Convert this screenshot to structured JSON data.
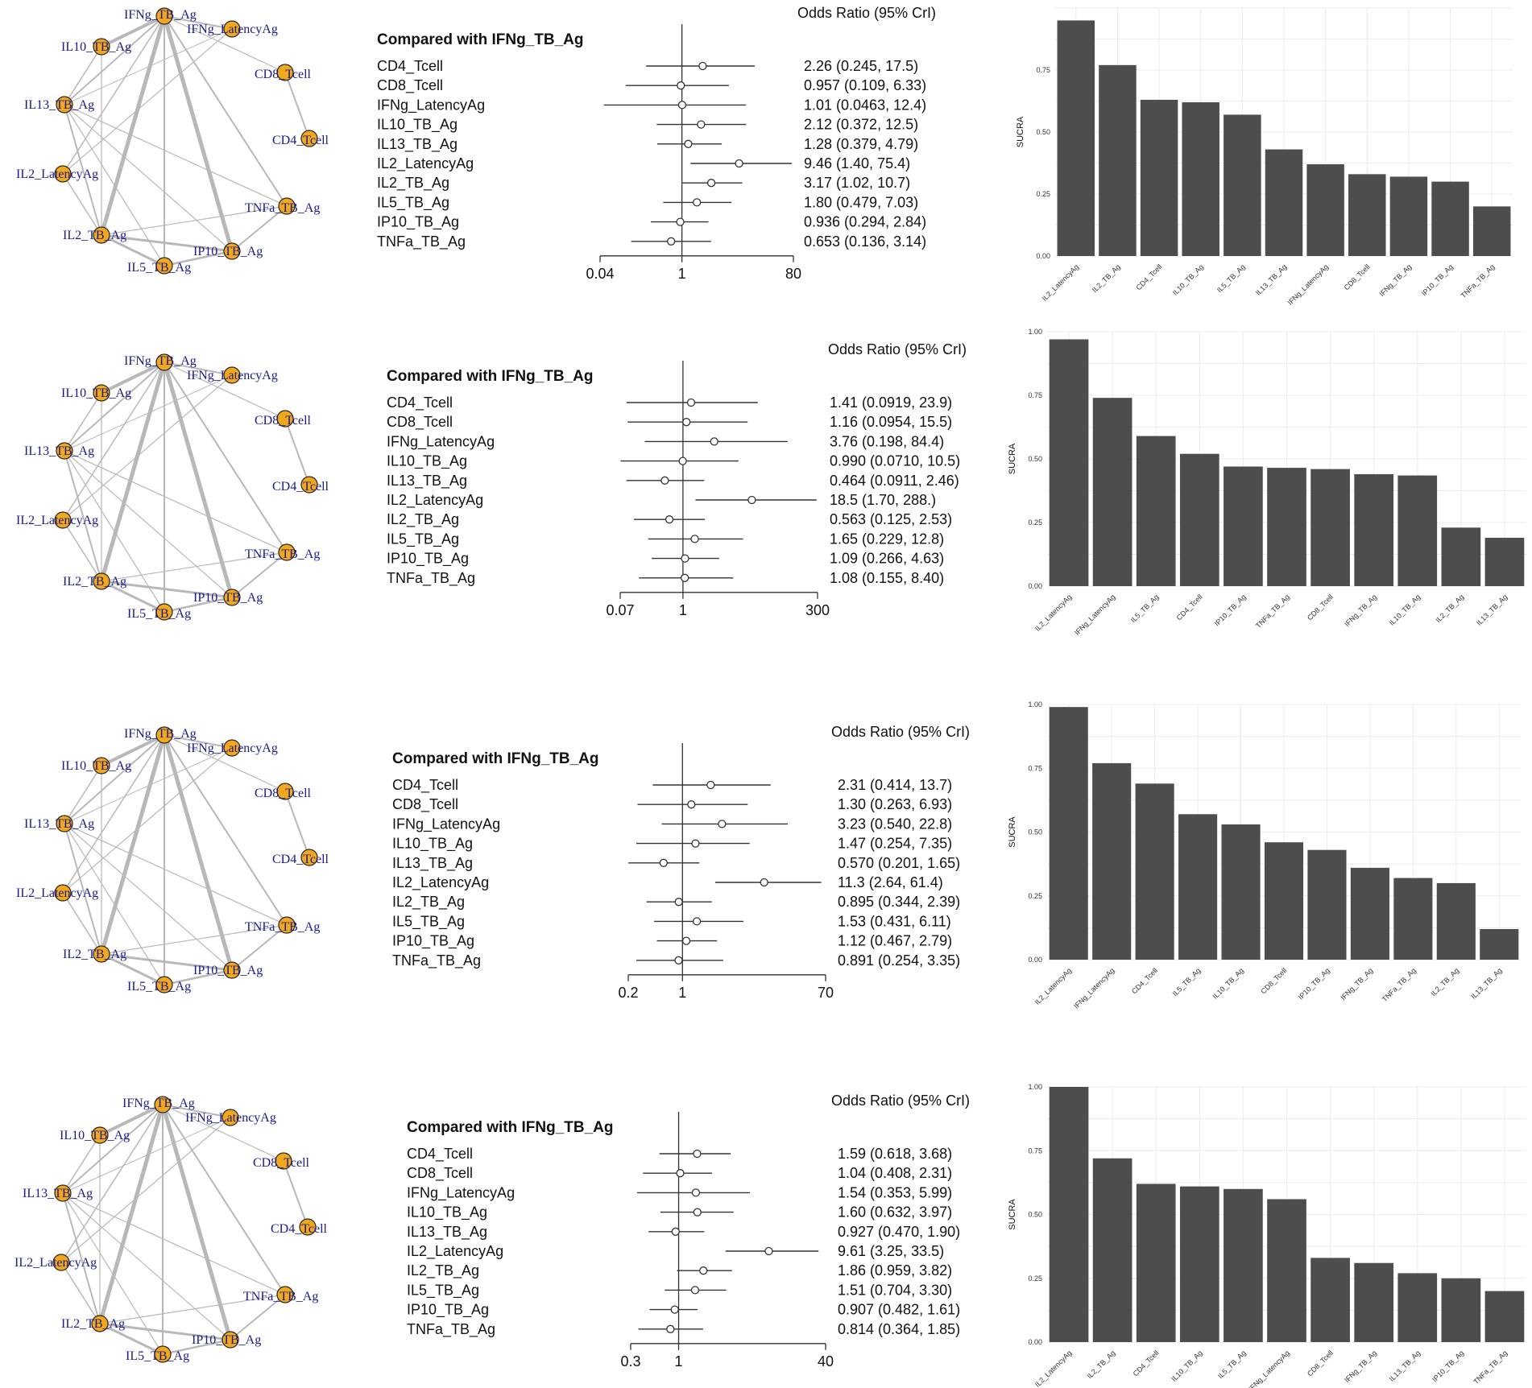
{
  "chart_data": [
    {
      "type": "network",
      "panel": 1,
      "nodes": [
        "IFNg_TB_Ag",
        "IFNg_LatencyAg",
        "CD8_Tcell",
        "CD4_Tcell",
        "TNFa_TB_Ag",
        "IP10_TB_Ag",
        "IL5_TB_Ag",
        "IL2_TB_Ag",
        "IL2_LatencyAg",
        "IL13_TB_Ag",
        "IL10_TB_Ag"
      ]
    },
    {
      "type": "forest",
      "panel": 1,
      "title": "Compared with IFNg_TB_Ag",
      "header": "Odds Ratio (95% CrI)",
      "scale": "log",
      "ticks": [
        "0.04",
        "1",
        "80"
      ],
      "xlim": [
        0.04,
        80
      ],
      "rows": [
        {
          "label": "CD4_Tcell",
          "or": 2.26,
          "lo": 0.245,
          "hi": 17.5,
          "text": "2.26 (0.245, 17.5)"
        },
        {
          "label": "CD8_Tcell",
          "or": 0.957,
          "lo": 0.109,
          "hi": 6.33,
          "text": "0.957 (0.109, 6.33)"
        },
        {
          "label": "IFNg_LatencyAg",
          "or": 1.01,
          "lo": 0.0463,
          "hi": 12.4,
          "text": "1.01 (0.0463, 12.4)"
        },
        {
          "label": "IL10_TB_Ag",
          "or": 2.12,
          "lo": 0.372,
          "hi": 12.5,
          "text": "2.12 (0.372, 12.5)"
        },
        {
          "label": "IL13_TB_Ag",
          "or": 1.28,
          "lo": 0.379,
          "hi": 4.79,
          "text": "1.28 (0.379, 4.79)"
        },
        {
          "label": "IL2_LatencyAg",
          "or": 9.46,
          "lo": 1.4,
          "hi": 75.4,
          "text": "9.46 (1.40, 75.4)"
        },
        {
          "label": "IL2_TB_Ag",
          "or": 3.17,
          "lo": 1.02,
          "hi": 10.7,
          "text": "3.17 (1.02, 10.7)"
        },
        {
          "label": "IL5_TB_Ag",
          "or": 1.8,
          "lo": 0.479,
          "hi": 7.03,
          "text": "1.80 (0.479, 7.03)"
        },
        {
          "label": "IP10_TB_Ag",
          "or": 0.936,
          "lo": 0.294,
          "hi": 2.84,
          "text": "0.936 (0.294, 2.84)"
        },
        {
          "label": "TNFa_TB_Ag",
          "or": 0.653,
          "lo": 0.136,
          "hi": 3.14,
          "text": "0.653 (0.136, 3.14)"
        }
      ]
    },
    {
      "type": "bar",
      "panel": 1,
      "ylabel": "SUCRA",
      "ylim": [
        0,
        1
      ],
      "yticks": [
        "0.00",
        "0.25",
        "0.50",
        "0.75"
      ],
      "categories": [
        "IL2_LatencyAg",
        "IL2_TB_Ag",
        "CD4_Tcell",
        "IL10_TB_Ag",
        "IL5_TB_Ag",
        "IL13_TB_Ag",
        "IFNg_LatencyAg",
        "CD8_Tcell",
        "IFNg_TB_Ag",
        "IP10_TB_Ag",
        "TNFa_TB_Ag"
      ],
      "values": [
        0.95,
        0.77,
        0.63,
        0.62,
        0.57,
        0.43,
        0.37,
        0.33,
        0.32,
        0.3,
        0.2
      ]
    },
    {
      "type": "network",
      "panel": 2,
      "nodes": [
        "IFNg_TB_Ag",
        "IFNg_LatencyAg",
        "CD8_Tcell",
        "CD4_Tcell",
        "TNFa_TB_Ag",
        "IP10_TB_Ag",
        "IL5_TB_Ag",
        "IL2_TB_Ag",
        "IL2_LatencyAg",
        "IL13_TB_Ag",
        "IL10_TB_Ag"
      ]
    },
    {
      "type": "forest",
      "panel": 2,
      "title": "Compared with IFNg_TB_Ag",
      "header": "Odds Ratio (95% CrI)",
      "scale": "log",
      "ticks": [
        "0.07",
        "1",
        "300"
      ],
      "xlim": [
        0.07,
        300
      ],
      "rows": [
        {
          "label": "CD4_Tcell",
          "or": 1.41,
          "lo": 0.0919,
          "hi": 23.9,
          "text": "1.41 (0.0919, 23.9)"
        },
        {
          "label": "CD8_Tcell",
          "or": 1.16,
          "lo": 0.0954,
          "hi": 15.5,
          "text": "1.16 (0.0954, 15.5)"
        },
        {
          "label": "IFNg_LatencyAg",
          "or": 3.76,
          "lo": 0.198,
          "hi": 84.4,
          "text": "3.76 (0.198, 84.4)"
        },
        {
          "label": "IL10_TB_Ag",
          "or": 0.99,
          "lo": 0.071,
          "hi": 10.5,
          "text": "0.990 (0.0710, 10.5)"
        },
        {
          "label": "IL13_TB_Ag",
          "or": 0.464,
          "lo": 0.0911,
          "hi": 2.46,
          "text": "0.464 (0.0911, 2.46)"
        },
        {
          "label": "IL2_LatencyAg",
          "or": 18.5,
          "lo": 1.7,
          "hi": 288,
          "text": "18.5 (1.70, 288.)"
        },
        {
          "label": "IL2_TB_Ag",
          "or": 0.563,
          "lo": 0.125,
          "hi": 2.53,
          "text": "0.563 (0.125, 2.53)"
        },
        {
          "label": "IL5_TB_Ag",
          "or": 1.65,
          "lo": 0.229,
          "hi": 12.8,
          "text": "1.65 (0.229, 12.8)"
        },
        {
          "label": "IP10_TB_Ag",
          "or": 1.09,
          "lo": 0.266,
          "hi": 4.63,
          "text": "1.09 (0.266, 4.63)"
        },
        {
          "label": "TNFa_TB_Ag",
          "or": 1.08,
          "lo": 0.155,
          "hi": 8.4,
          "text": "1.08 (0.155, 8.40)"
        }
      ]
    },
    {
      "type": "bar",
      "panel": 2,
      "ylabel": "SUCRA",
      "ylim": [
        0,
        1
      ],
      "yticks": [
        "0.00",
        "0.25",
        "0.50",
        "0.75",
        "1.00"
      ],
      "categories": [
        "IL2_LatencyAg",
        "IFNg_LatencyAg",
        "IL5_TB_Ag",
        "CD4_Tcell",
        "IP10_TB_Ag",
        "TNFa_TB_Ag",
        "CD8_Tcell",
        "IFNg_TB_Ag",
        "IL10_TB_Ag",
        "IL2_TB_Ag",
        "IL13_TB_Ag"
      ],
      "values": [
        0.97,
        0.74,
        0.59,
        0.52,
        0.47,
        0.465,
        0.46,
        0.44,
        0.435,
        0.23,
        0.19
      ]
    },
    {
      "type": "network",
      "panel": 3,
      "nodes": [
        "IFNg_TB_Ag",
        "IFNg_LatencyAg",
        "CD8_Tcell",
        "CD4_Tcell",
        "TNFa_TB_Ag",
        "IP10_TB_Ag",
        "IL5_TB_Ag",
        "IL2_TB_Ag",
        "IL2_LatencyAg",
        "IL13_TB_Ag",
        "IL10_TB_Ag"
      ]
    },
    {
      "type": "forest",
      "panel": 3,
      "title": "Compared with IFNg_TB_Ag",
      "header": "Odds Ratio (95% CrI)",
      "scale": "log",
      "ticks": [
        "0.2",
        "1",
        "70"
      ],
      "xlim": [
        0.2,
        70
      ],
      "rows": [
        {
          "label": "CD4_Tcell",
          "or": 2.31,
          "lo": 0.414,
          "hi": 13.7,
          "text": "2.31 (0.414, 13.7)"
        },
        {
          "label": "CD8_Tcell",
          "or": 1.3,
          "lo": 0.263,
          "hi": 6.93,
          "text": "1.30 (0.263, 6.93)"
        },
        {
          "label": "IFNg_LatencyAg",
          "or": 3.23,
          "lo": 0.54,
          "hi": 22.8,
          "text": "3.23 (0.540, 22.8)"
        },
        {
          "label": "IL10_TB_Ag",
          "or": 1.47,
          "lo": 0.254,
          "hi": 7.35,
          "text": "1.47 (0.254, 7.35)"
        },
        {
          "label": "IL13_TB_Ag",
          "or": 0.57,
          "lo": 0.201,
          "hi": 1.65,
          "text": "0.570 (0.201, 1.65)"
        },
        {
          "label": "IL2_LatencyAg",
          "or": 11.3,
          "lo": 2.64,
          "hi": 61.4,
          "text": "11.3 (2.64, 61.4)"
        },
        {
          "label": "IL2_TB_Ag",
          "or": 0.895,
          "lo": 0.344,
          "hi": 2.39,
          "text": "0.895 (0.344, 2.39)"
        },
        {
          "label": "IL5_TB_Ag",
          "or": 1.53,
          "lo": 0.431,
          "hi": 6.11,
          "text": "1.53 (0.431, 6.11)"
        },
        {
          "label": "IP10_TB_Ag",
          "or": 1.12,
          "lo": 0.467,
          "hi": 2.79,
          "text": "1.12 (0.467, 2.79)"
        },
        {
          "label": "TNFa_TB_Ag",
          "or": 0.891,
          "lo": 0.254,
          "hi": 3.35,
          "text": "0.891 (0.254, 3.35)"
        }
      ]
    },
    {
      "type": "bar",
      "panel": 3,
      "ylabel": "SUCRA",
      "ylim": [
        0,
        1
      ],
      "yticks": [
        "0.00",
        "0.25",
        "0.50",
        "0.75",
        "1.00"
      ],
      "categories": [
        "IL2_LatencyAg",
        "IFNg_LatencyAg",
        "CD4_Tcell",
        "IL5_TB_Ag",
        "IL10_TB_Ag",
        "CD8_Tcell",
        "IP10_TB_Ag",
        "IFNg_TB_Ag",
        "TNFa_TB_Ag",
        "IL2_TB_Ag",
        "IL13_TB_Ag"
      ],
      "values": [
        0.99,
        0.77,
        0.69,
        0.57,
        0.53,
        0.46,
        0.43,
        0.36,
        0.32,
        0.3,
        0.12
      ]
    },
    {
      "type": "network",
      "panel": 4,
      "nodes": [
        "IFNg_TB_Ag",
        "IFNg_LatencyAg",
        "CD8_Tcell",
        "CD4_Tcell",
        "TNFa_TB_Ag",
        "IP10_TB_Ag",
        "IL5_TB_Ag",
        "IL2_TB_Ag",
        "IL2_LatencyAg",
        "IL13_TB_Ag",
        "IL10_TB_Ag"
      ]
    },
    {
      "type": "forest",
      "panel": 4,
      "title": "Compared with IFNg_TB_Ag",
      "header": "Odds Ratio (95% CrI)",
      "scale": "log",
      "ticks": [
        "0.3",
        "1",
        "40"
      ],
      "xlim": [
        0.3,
        40
      ],
      "rows": [
        {
          "label": "CD4_Tcell",
          "or": 1.59,
          "lo": 0.618,
          "hi": 3.68,
          "text": "1.59 (0.618, 3.68)"
        },
        {
          "label": "CD8_Tcell",
          "or": 1.04,
          "lo": 0.408,
          "hi": 2.31,
          "text": "1.04 (0.408, 2.31)"
        },
        {
          "label": "IFNg_LatencyAg",
          "or": 1.54,
          "lo": 0.353,
          "hi": 5.99,
          "text": "1.54 (0.353, 5.99)"
        },
        {
          "label": "IL10_TB_Ag",
          "or": 1.6,
          "lo": 0.632,
          "hi": 3.97,
          "text": "1.60 (0.632, 3.97)"
        },
        {
          "label": "IL13_TB_Ag",
          "or": 0.927,
          "lo": 0.47,
          "hi": 1.9,
          "text": "0.927 (0.470, 1.90)"
        },
        {
          "label": "IL2_LatencyAg",
          "or": 9.61,
          "lo": 3.25,
          "hi": 33.5,
          "text": "9.61 (3.25, 33.5)"
        },
        {
          "label": "IL2_TB_Ag",
          "or": 1.86,
          "lo": 0.959,
          "hi": 3.82,
          "text": "1.86 (0.959, 3.82)"
        },
        {
          "label": "IL5_TB_Ag",
          "or": 1.51,
          "lo": 0.704,
          "hi": 3.3,
          "text": "1.51 (0.704, 3.30)"
        },
        {
          "label": "IP10_TB_Ag",
          "or": 0.907,
          "lo": 0.482,
          "hi": 1.61,
          "text": "0.907 (0.482, 1.61)"
        },
        {
          "label": "TNFa_TB_Ag",
          "or": 0.814,
          "lo": 0.364,
          "hi": 1.85,
          "text": "0.814 (0.364, 1.85)"
        }
      ]
    },
    {
      "type": "bar",
      "panel": 4,
      "ylabel": "SUCRA",
      "ylim": [
        0,
        1
      ],
      "yticks": [
        "0.00",
        "0.25",
        "0.50",
        "0.75",
        "1.00"
      ],
      "categories": [
        "IL2_LatencyAg",
        "IL2_TB_Ag",
        "CD4_Tcell",
        "IL10_TB_Ag",
        "IL5_TB_Ag",
        "IFNg_LatencyAg",
        "CD8_Tcell",
        "IFNg_TB_Ag",
        "IL13_TB_Ag",
        "IP10_TB_Ag",
        "TNFa_TB_Ag"
      ],
      "values": [
        1.0,
        0.72,
        0.62,
        0.61,
        0.6,
        0.56,
        0.33,
        0.31,
        0.27,
        0.25,
        0.2
      ]
    }
  ],
  "colors": {
    "bar": "#4d4d4d",
    "node_fill": "#f2a81d",
    "node_stroke": "#222222",
    "node_label": "#1a1a8c",
    "edge": "#b8b8b8",
    "grid": "#ececec",
    "text": "#111111"
  }
}
